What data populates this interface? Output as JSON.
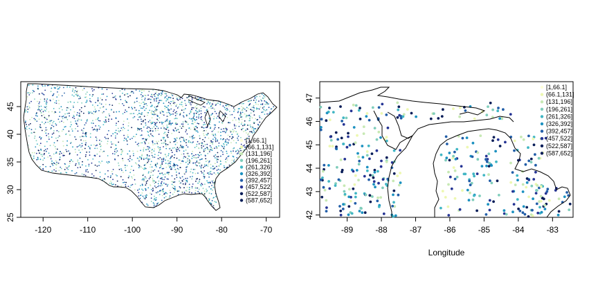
{
  "palette": [
    "#ffffd9",
    "#edf8b1",
    "#c7e9b4",
    "#7fcdbb",
    "#41b6c4",
    "#1d91c0",
    "#225ea8",
    "#253494",
    "#081d58"
  ],
  "chart_data": [
    {
      "type": "scatter",
      "title": "",
      "xlabel": "",
      "ylabel": "",
      "xlim": [
        -125,
        -67
      ],
      "ylim": [
        25,
        49.5
      ],
      "x_ticks": [
        -120,
        -110,
        -100,
        -90,
        -80,
        -70
      ],
      "y_ticks": [
        25,
        30,
        35,
        40,
        45
      ],
      "x_tick_labels": [
        "-120",
        "-110",
        "-100",
        "-90",
        "-80",
        "-70"
      ],
      "y_tick_labels": [
        "25",
        "30",
        "35",
        "40",
        "45"
      ],
      "legend": [
        "[1,66.1]",
        "(66.1,131]",
        "(131,196]",
        "(196,261]",
        "(261,326]",
        "(326,392]",
        "(392,457]",
        "(457,522]",
        "(522,587]",
        "(587,652]"
      ],
      "legend_position": "right",
      "grid": false
    },
    {
      "type": "scatter",
      "title": "",
      "xlabel": "Longitude",
      "ylabel": "",
      "xlim": [
        -89.8,
        -82.4
      ],
      "ylim": [
        41.9,
        47.7
      ],
      "x_ticks": [
        -89,
        -88,
        -87,
        -86,
        -85,
        -84,
        -83
      ],
      "y_ticks": [
        42,
        43,
        44,
        45,
        46,
        47
      ],
      "x_tick_labels": [
        "-89",
        "-88",
        "-87",
        "-86",
        "-85",
        "-84",
        "-83"
      ],
      "y_tick_labels": [
        "42",
        "43",
        "44",
        "45",
        "46",
        "47"
      ],
      "legend": [
        "[1,66.1]",
        "(66.1,131]",
        "(131,196]",
        "(196,261]",
        "(261,326]",
        "(326,392]",
        "(392,457]",
        "(457,522]",
        "(522,587]",
        "(587,652]"
      ],
      "legend_position": "top-right",
      "grid": false
    }
  ]
}
